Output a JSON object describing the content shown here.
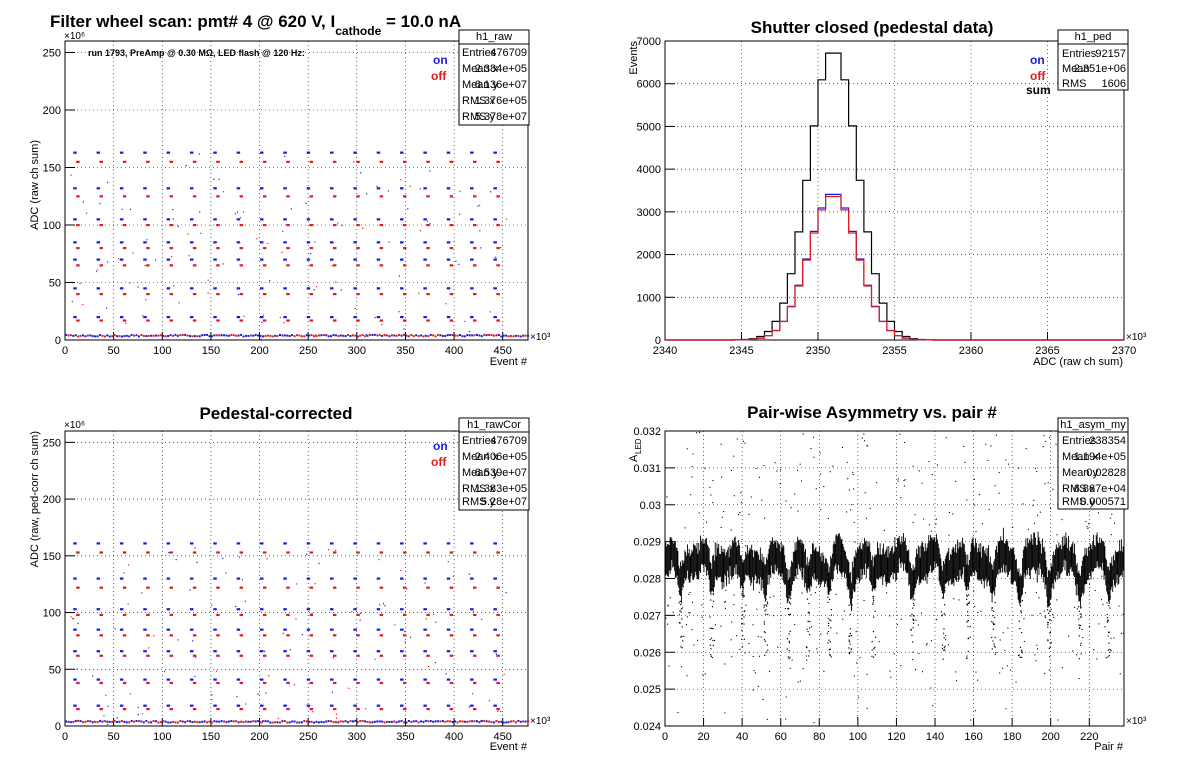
{
  "colors": {
    "on": "#1c1cdc",
    "off": "#e01c1c",
    "sum": "#000000",
    "frame": "#000000",
    "grid": "#000000"
  },
  "pads": [
    {
      "id": "raw",
      "title_main": "Filter wheel scan: pmt#   4 @   620 V, I",
      "title_sub": "cathode",
      "title_end": " = 10.0 nA",
      "ylabel": "ADC (raw ch sum)",
      "xlabel": "Event #",
      "y_exponent": "×10⁶",
      "x_exponent": "×10³",
      "run_info": "run 1793, PreAmp @ 0.30 MΩ, LED flash @  120 Hz:",
      "legend": [
        "on",
        "off"
      ],
      "stats_title": "h1_raw",
      "stats": [
        [
          "Entries",
          "476709"
        ],
        [
          "Mean x",
          "2.384e+05"
        ],
        [
          "Mean y",
          "6.136e+07"
        ],
        [
          "RMS x",
          "1.376e+05"
        ],
        [
          "RMS y",
          "5.378e+07"
        ]
      ]
    },
    {
      "id": "ped",
      "title_main": "Shutter closed (pedestal data)",
      "ylabel": "Events",
      "xlabel": "ADC (raw ch sum)",
      "x_exponent": "×10³",
      "legend": [
        "on",
        "off",
        "sum"
      ],
      "stats_title": "h1_ped",
      "stats": [
        [
          "Entries",
          "92157"
        ],
        [
          "Mean",
          "2.351e+06"
        ],
        [
          "RMS",
          "1606"
        ]
      ]
    },
    {
      "id": "cor",
      "title_main": "Pedestal-corrected",
      "ylabel": "ADC (raw, ped-corr ch sum)",
      "xlabel": "Event #",
      "y_exponent": "×10⁶",
      "x_exponent": "×10³",
      "legend": [
        "on",
        "off"
      ],
      "stats_title": "h1_rawCor",
      "stats": [
        [
          "Entries",
          "476709"
        ],
        [
          "Mean x",
          "2.406e+05"
        ],
        [
          "Mean y",
          "6.539e+07"
        ],
        [
          "RMS x",
          "1.383e+05"
        ],
        [
          "RMS y",
          "5.28e+07"
        ]
      ]
    },
    {
      "id": "asym",
      "title_main": "Pair-wise Asymmetry vs. pair #",
      "ylabel": "A",
      "ylabel_sub": "LED",
      "xlabel": "Pair #",
      "x_exponent": "×10³",
      "stats_title": "h1_asym_my",
      "stats": [
        [
          "Entries",
          "238354"
        ],
        [
          "Mean x",
          "1.194e+05"
        ],
        [
          "Mean y",
          "0.02828"
        ],
        [
          "RMS x",
          "6.867e+04"
        ],
        [
          "RMS y",
          "0.000571"
        ]
      ]
    }
  ],
  "chart_data": [
    {
      "type": "scatter",
      "title": "Filter wheel scan: pmt#   4 @   620 V, I_cathode = 10.0 nA",
      "xlabel": "Event #",
      "ylabel": "ADC (raw ch sum)",
      "x_scale": "x10^3",
      "y_scale": "x10^6",
      "xlim": [
        0,
        476
      ],
      "ylim": [
        0,
        260
      ],
      "xticks": [
        0,
        50,
        100,
        150,
        200,
        250,
        300,
        350,
        400,
        450
      ],
      "yticks": [
        0,
        50,
        100,
        150,
        200,
        250
      ],
      "grid": true,
      "legend_position": "top-right",
      "series": [
        {
          "name": "on",
          "levels": [
            163,
            132,
            105,
            85,
            70,
            45,
            20,
            3
          ]
        },
        {
          "name": "off",
          "levels": [
            155,
            125,
            100,
            80,
            65,
            40,
            17,
            2
          ]
        }
      ],
      "plateau_period_x": 24
    },
    {
      "type": "bar",
      "title": "Shutter closed (pedestal data)",
      "xlabel": "ADC (raw ch sum)",
      "ylabel": "Events",
      "x_scale": "x10^3",
      "xlim": [
        2340,
        2370
      ],
      "ylim": [
        0,
        7000
      ],
      "xticks": [
        2340,
        2345,
        2350,
        2355,
        2360,
        2365,
        2370
      ],
      "yticks": [
        0,
        1000,
        2000,
        3000,
        4000,
        5000,
        6000,
        7000
      ],
      "grid": true,
      "legend_position": "top-right",
      "series": [
        {
          "name": "sum",
          "mean": 2351.0,
          "sigma": 1.6,
          "peak": 6800
        },
        {
          "name": "on",
          "mean": 2351.0,
          "sigma": 1.6,
          "peak": 3450
        },
        {
          "name": "off",
          "mean": 2351.0,
          "sigma": 1.6,
          "peak": 3400
        }
      ]
    },
    {
      "type": "scatter",
      "title": "Pedestal-corrected",
      "xlabel": "Event #",
      "ylabel": "ADC (raw, ped-corr ch sum)",
      "x_scale": "x10^3",
      "y_scale": "x10^6",
      "xlim": [
        0,
        476
      ],
      "ylim": [
        0,
        260
      ],
      "xticks": [
        0,
        50,
        100,
        150,
        200,
        250,
        300,
        350,
        400,
        450
      ],
      "yticks": [
        0,
        50,
        100,
        150,
        200,
        250
      ],
      "grid": true,
      "legend_position": "top-right",
      "series": [
        {
          "name": "on",
          "levels": [
            161,
            130,
            103,
            85,
            66,
            41,
            18,
            3
          ]
        },
        {
          "name": "off",
          "levels": [
            153,
            122,
            98,
            80,
            62,
            38,
            15,
            2
          ]
        }
      ],
      "plateau_period_x": 24
    },
    {
      "type": "scatter",
      "title": "Pair-wise Asymmetry vs. pair #",
      "xlabel": "Pair #",
      "ylabel": "A_LED",
      "x_scale": "x10^3",
      "xlim": [
        0,
        238
      ],
      "ylim": [
        0.024,
        0.032
      ],
      "xticks": [
        0,
        20,
        40,
        60,
        80,
        100,
        120,
        140,
        160,
        180,
        200,
        220
      ],
      "yticks": [
        0.024,
        0.025,
        0.026,
        0.027,
        0.028,
        0.029,
        0.03,
        0.031,
        0.032
      ],
      "grid": true,
      "band_center": 0.0285,
      "band_halfwidth": 0.0004,
      "dip_low": 0.0263
    }
  ]
}
